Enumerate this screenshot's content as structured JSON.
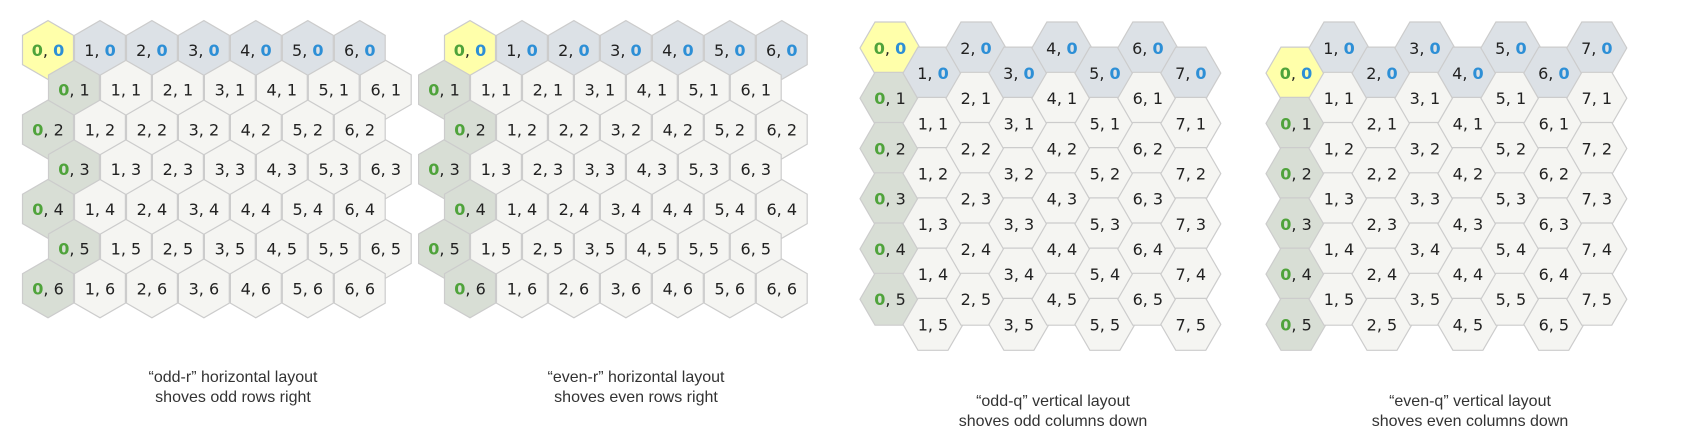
{
  "colors": {
    "origin_fill": "#ffffaa",
    "row_header_fill": "#d8ded5",
    "col_header_fill": "#dce1e6",
    "cell_fill": "#f5f5f2",
    "stroke": "#cccccc",
    "text": "#222222",
    "col_zero": "#4fa33b",
    "row_zero": "#2d8fd6"
  },
  "panels": [
    {
      "id": "odd-r",
      "orientation": "pointy",
      "offset": "odd-r",
      "cols": 7,
      "rows": 7,
      "caption_line1": "“odd-r” horizontal layout",
      "caption_line2": "shoves odd rows right"
    },
    {
      "id": "even-r",
      "orientation": "pointy",
      "offset": "even-r",
      "cols": 7,
      "rows": 7,
      "caption_line1": "“even-r” horizontal layout",
      "caption_line2": "shoves even rows right"
    },
    {
      "id": "odd-q",
      "orientation": "flat",
      "offset": "odd-q",
      "cols": 8,
      "rows": 6,
      "caption_line1": "“odd-q” vertical layout",
      "caption_line2": "shoves odd columns down"
    },
    {
      "id": "even-q",
      "orientation": "flat",
      "offset": "even-q",
      "cols": 8,
      "rows": 6,
      "caption_line1": "“even-q” vertical layout",
      "caption_line2": "shoves even columns down"
    }
  ]
}
